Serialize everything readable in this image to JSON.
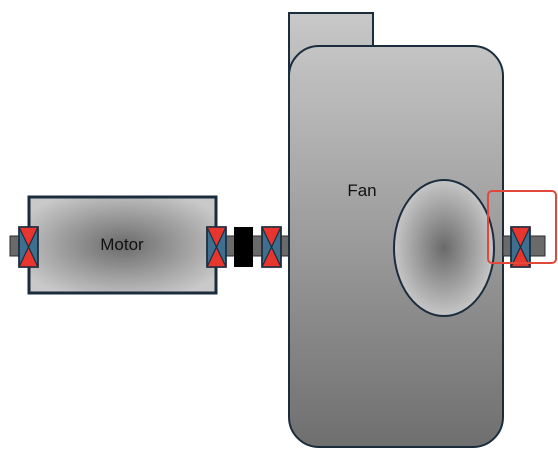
{
  "labels": {
    "motor": "Motor",
    "fan": "Fan"
  },
  "colors": {
    "outline": "#1b2d3d",
    "bearing_body": "#3f6f8f",
    "bearing_marker": "#e8352d",
    "coupling": "#000000",
    "shaft": "#6a6a6a",
    "highlight": "#e2473b"
  },
  "icons": {
    "bearing": "bearing-icon",
    "coupling": "coupling-icon"
  }
}
